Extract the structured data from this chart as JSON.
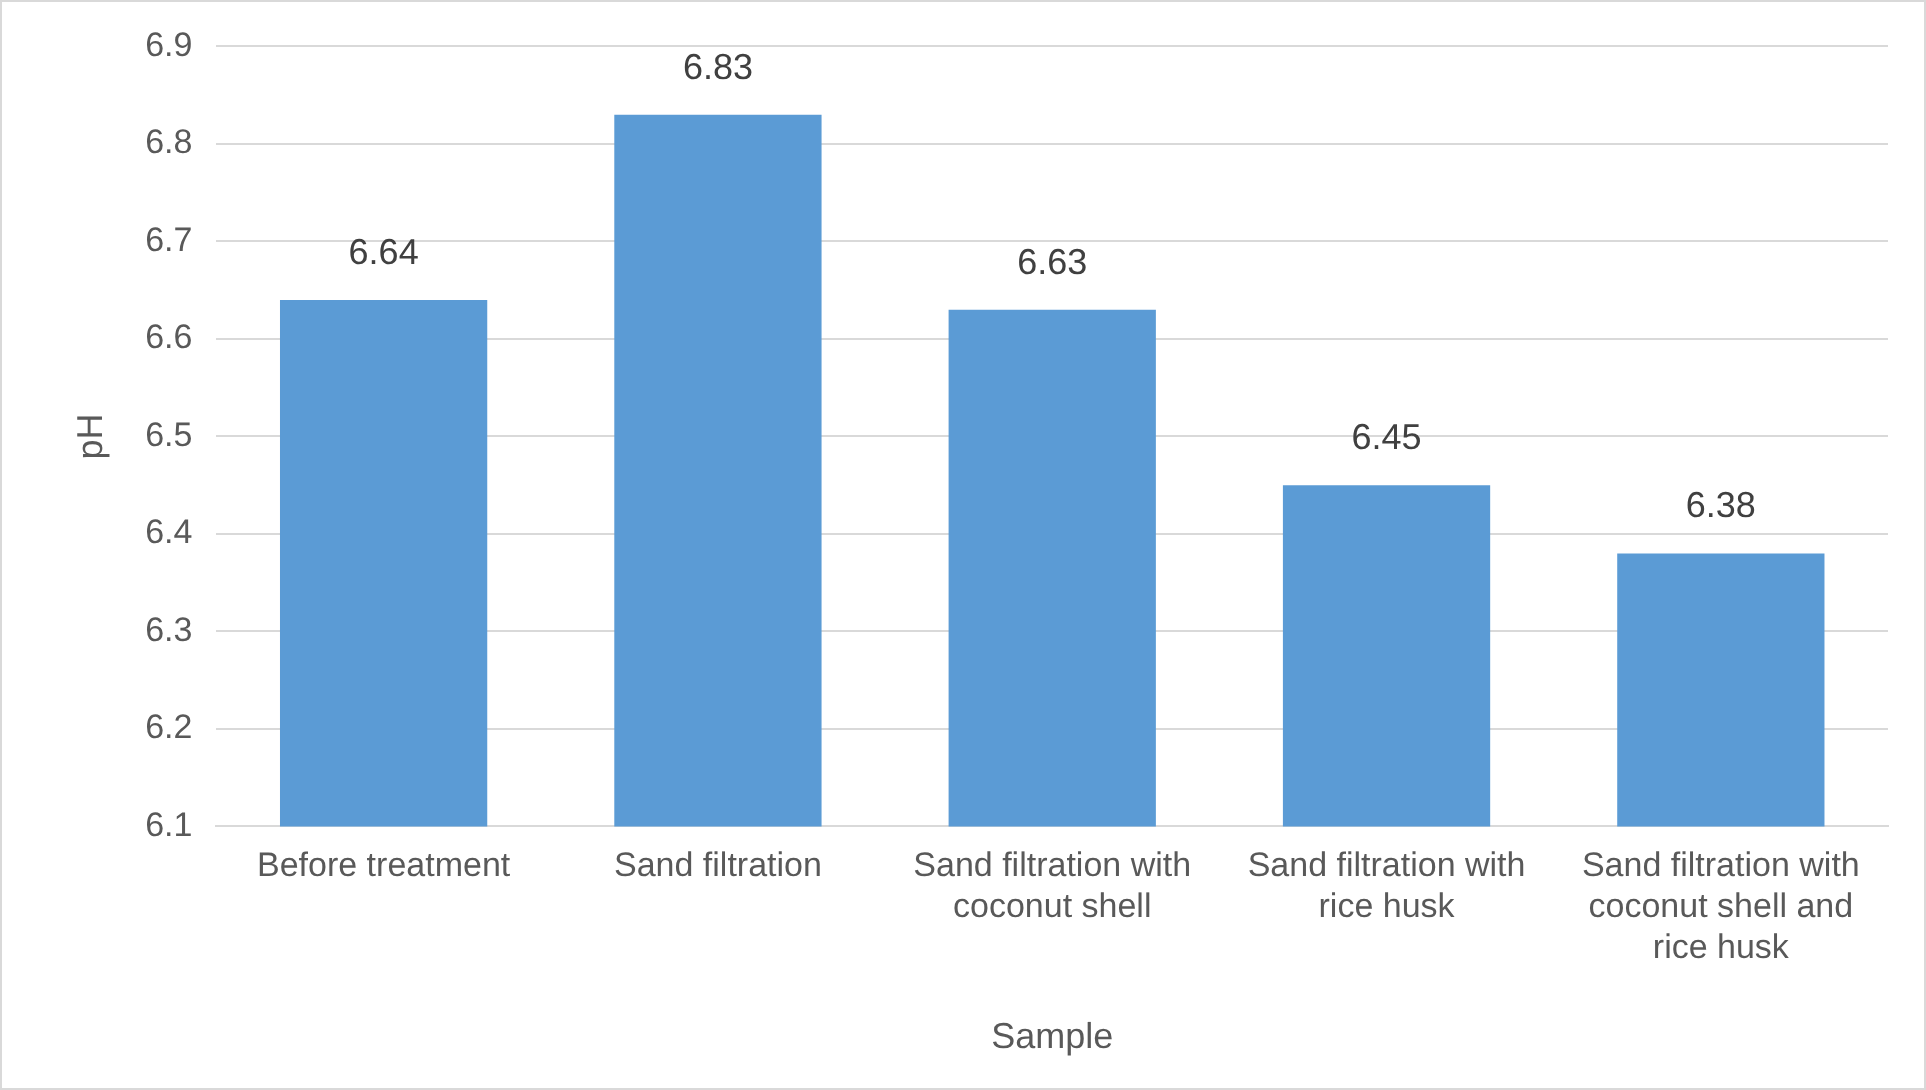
{
  "chart_data": {
    "type": "bar",
    "xlabel": "Sample",
    "ylabel": "pH",
    "categories": [
      "Before treatment",
      "Sand filtration",
      "Sand filtration with coconut shell",
      "Sand filtration with rice husk",
      "Sand filtration with coconut shell and rice husk"
    ],
    "values": [
      6.64,
      6.83,
      6.63,
      6.45,
      6.38
    ],
    "color": "#5b9bd5",
    "ylim": [
      6.1,
      6.9
    ],
    "yticks": [
      6.1,
      6.2,
      6.3,
      6.4,
      6.5,
      6.6,
      6.7,
      6.8,
      6.9
    ],
    "grid": "y",
    "data_labels": true
  }
}
